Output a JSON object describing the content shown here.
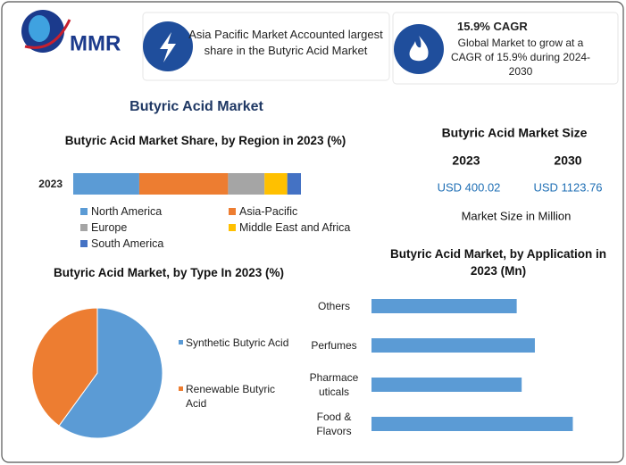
{
  "header": {
    "logo": "MMR",
    "highlight": "Asia Pacific Market Accounted largest share in the Butyric Acid Market",
    "cagr_title": "15.9% CAGR",
    "cagr_text": "Global Market to grow at a CAGR of 15.9% during 2024-2030"
  },
  "title": "Butyric Acid Market",
  "market_size": {
    "title": "Butyric Acid Market Size",
    "years": [
      "2023",
      "2030"
    ],
    "values": [
      "USD 400.02",
      "USD 1123.76"
    ],
    "note": "Market Size in Million"
  },
  "chart_data": [
    {
      "type": "bar",
      "orientation": "horizontal",
      "stacked": true,
      "title": "Butyric Acid Market Share, by Region in 2023 (%)",
      "categories": [
        "2023"
      ],
      "series": [
        {
          "name": "North America",
          "color": "#5b9bd5",
          "values": [
            29
          ]
        },
        {
          "name": "Asia-Pacific",
          "color": "#ed7d31",
          "values": [
            39
          ]
        },
        {
          "name": "Europe",
          "color": "#a5a5a5",
          "values": [
            16
          ]
        },
        {
          "name": "Middle East and Africa",
          "color": "#ffc000",
          "values": [
            10
          ]
        },
        {
          "name": "South America",
          "color": "#4472c4",
          "values": [
            6
          ]
        }
      ],
      "xlim": [
        0,
        100
      ],
      "legend": "bottom"
    },
    {
      "type": "pie",
      "title": "Butyric Acid Market, by Type In 2023 (%)",
      "categories": [
        "Synthetic Butyric Acid",
        "Renewable Butyric Acid"
      ],
      "values": [
        60,
        40
      ],
      "colors": [
        "#5b9bd5",
        "#ed7d31"
      ],
      "legend": "right"
    },
    {
      "type": "bar",
      "orientation": "horizontal",
      "title": "Butyric Acid Market, by Application in 2023 (Mn)",
      "categories": [
        "Others",
        "Perfumes",
        "Pharmaceuticals",
        "Food & Flavors"
      ],
      "values": [
        88,
        99,
        91,
        122
      ],
      "color": "#5b9bd5",
      "xlim": [
        0,
        140
      ]
    }
  ]
}
